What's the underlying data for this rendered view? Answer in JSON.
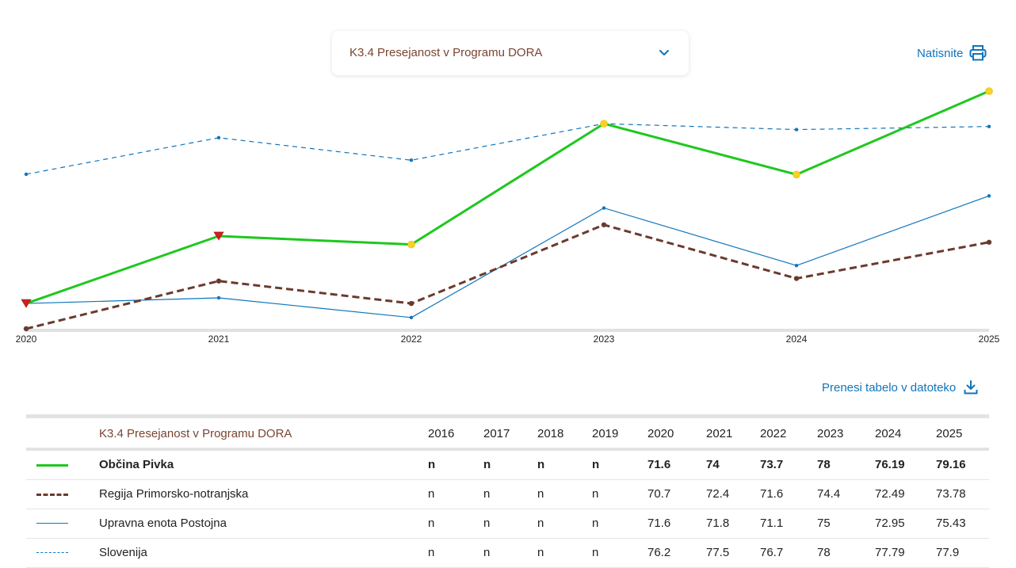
{
  "header": {
    "dropdown_label": "K3.4 Presejanost v Programu DORA",
    "print_label": "Natisnite",
    "download_label": "Prenesi tabelo v datoteko"
  },
  "icons": {
    "dropdown": "chevron-down-icon",
    "print": "printer-icon",
    "download": "download-icon"
  },
  "colors": {
    "accent_blue": "#0f75bc",
    "brown": "#7a4431",
    "green": "#1ec81e",
    "marker_yellow": "#f5d327",
    "marker_red": "#d41f1f"
  },
  "chart_data": {
    "type": "line",
    "x": [
      "2020",
      "2021",
      "2022",
      "2023",
      "2024",
      "2025"
    ],
    "ylim": [
      70.7,
      79.16
    ],
    "grid": false,
    "series": [
      {
        "name": "Slovenija",
        "values": [
          76.2,
          77.5,
          76.7,
          78,
          77.79,
          77.9
        ],
        "color": "#0f75bc",
        "style": "dashed-thin"
      },
      {
        "name": "Upravna enota Postojna",
        "values": [
          71.6,
          71.8,
          71.1,
          75,
          72.95,
          75.43
        ],
        "color": "#0f75bc",
        "style": "solid-thin"
      },
      {
        "name": "Regija Primorsko-notranjska",
        "values": [
          70.7,
          72.4,
          71.6,
          74.4,
          72.49,
          73.78
        ],
        "color": "#6b3a2e",
        "style": "dashed-thick"
      },
      {
        "name": "Občina Pivka",
        "values": [
          71.6,
          74,
          73.7,
          78,
          76.19,
          79.16
        ],
        "color": "#1ec81e",
        "style": "solid-thick",
        "markers": [
          "red-triangle",
          "red-triangle",
          "yellow-circle",
          "yellow-circle",
          "yellow-circle",
          "yellow-circle"
        ]
      }
    ]
  },
  "table": {
    "title": "K3.4 Presejanost v Programu DORA",
    "years": [
      "2016",
      "2017",
      "2018",
      "2019",
      "2020",
      "2021",
      "2022",
      "2023",
      "2024",
      "2025"
    ],
    "rows": [
      {
        "name": "Občina Pivka",
        "bold": true,
        "swatch": "solid-thick-green",
        "values": [
          "n",
          "n",
          "n",
          "n",
          "71.6",
          "74",
          "73.7",
          "78",
          "76.19",
          "79.16"
        ]
      },
      {
        "name": "Regija Primorsko-notranjska",
        "bold": false,
        "swatch": "dashed-thick-brown",
        "values": [
          "n",
          "n",
          "n",
          "n",
          "70.7",
          "72.4",
          "71.6",
          "74.4",
          "72.49",
          "73.78"
        ]
      },
      {
        "name": "Upravna enota Postojna",
        "bold": false,
        "swatch": "solid-thin-blue",
        "values": [
          "n",
          "n",
          "n",
          "n",
          "71.6",
          "71.8",
          "71.1",
          "75",
          "72.95",
          "75.43"
        ]
      },
      {
        "name": "Slovenija",
        "bold": false,
        "swatch": "dashed-thin-blue",
        "values": [
          "n",
          "n",
          "n",
          "n",
          "76.2",
          "77.5",
          "76.7",
          "78",
          "77.79",
          "77.9"
        ]
      }
    ]
  }
}
